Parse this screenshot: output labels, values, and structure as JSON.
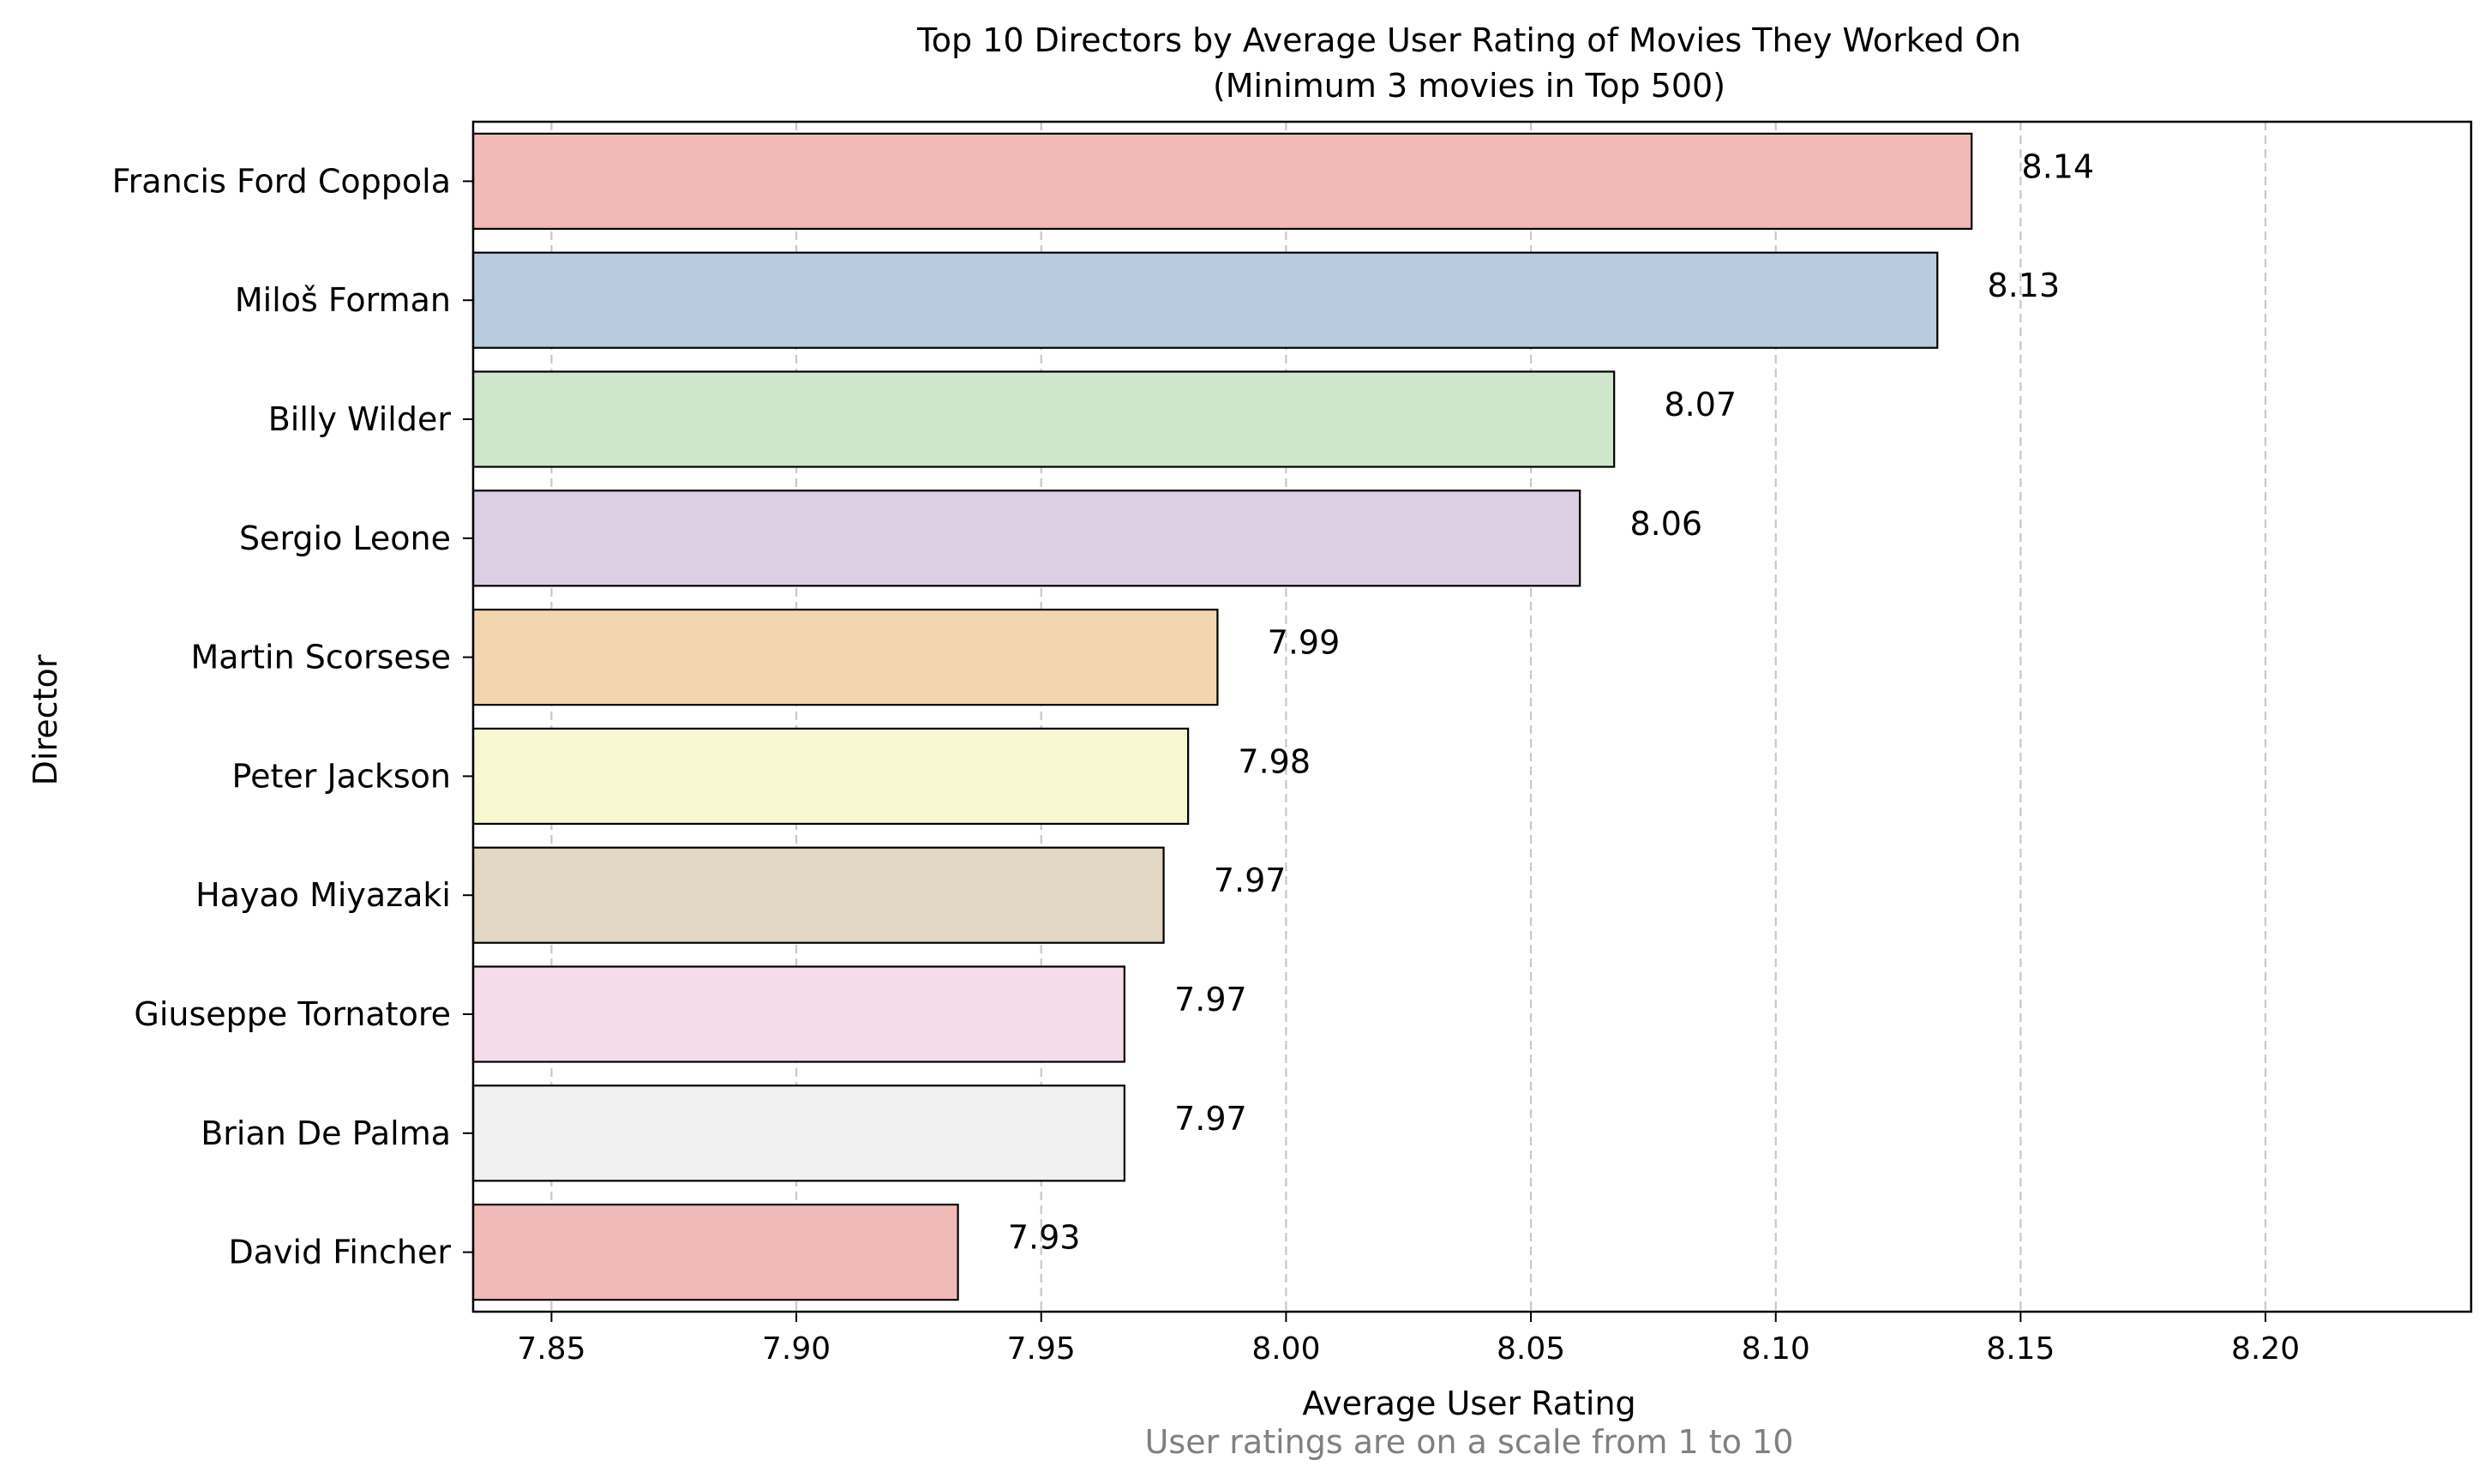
{
  "chart_data": {
    "type": "bar",
    "orientation": "horizontal",
    "title": "Top 10 Directors by Average User Rating of Movies They Worked On",
    "subtitle": "(Minimum 3 movies in Top 500)",
    "xlabel": "Average User Rating",
    "ylabel": "Director",
    "footnote": "User ratings are on a scale from 1 to 10",
    "xlim": [
      7.834,
      8.242
    ],
    "xticks": [
      "7.85",
      "7.90",
      "7.95",
      "8.00",
      "8.05",
      "8.10",
      "8.15",
      "8.20"
    ],
    "grid": "vertical dashed",
    "categories": [
      "Francis Ford Coppola",
      "Miloš Forman",
      "Billy Wilder",
      "Sergio Leone",
      "Martin Scorsese",
      "Peter Jackson",
      "Hayao Miyazaki",
      "Giuseppe Tornatore",
      "Brian De Palma",
      "David Fincher"
    ],
    "values": [
      8.14,
      8.133,
      8.067,
      8.06,
      7.986,
      7.98,
      7.975,
      7.967,
      7.967,
      7.933
    ],
    "labels": [
      "8.14",
      "8.13",
      "8.07",
      "8.06",
      "7.99",
      "7.98",
      "7.97",
      "7.97",
      "7.97",
      "7.93"
    ],
    "colors": [
      "#f0bab7",
      "#b8cbdf",
      "#cfe6cc",
      "#dccfe3",
      "#f4d6ae",
      "#f8f8d0",
      "#e1d7c2",
      "#f6dcea",
      "#f1f1f1",
      "#f0bab7"
    ]
  }
}
